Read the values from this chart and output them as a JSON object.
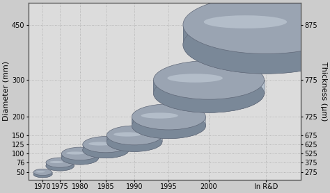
{
  "years": [
    "1970",
    "1975",
    "1980",
    "1985",
    "1990",
    "1995",
    "2000",
    "In R&D"
  ],
  "x_positions": [
    0.0,
    0.6,
    1.3,
    2.2,
    3.2,
    4.4,
    5.8,
    7.8
  ],
  "diameters": [
    50,
    76,
    100,
    125,
    150,
    200,
    300,
    450
  ],
  "thicknesses": [
    275,
    375,
    525,
    625,
    675,
    725,
    775,
    875
  ],
  "left_yticks": [
    50,
    76,
    100,
    125,
    150,
    200,
    300,
    450
  ],
  "right_yticks": [
    275,
    375,
    525,
    625,
    675,
    725,
    775,
    875
  ],
  "left_ylim": [
    30,
    510
  ],
  "xlim": [
    -0.5,
    9.0
  ],
  "bg_color": "#dcdcdc",
  "wafer_face_color": "#9aa4b2",
  "wafer_edge_color": "#606878",
  "wafer_side_dark": "#7a8898",
  "wafer_side_light": "#b8c4d0",
  "wafer_highlight": "#ccd6e0",
  "grid_color": "#aaaaaa",
  "fig_facecolor": "#cccccc",
  "tick_label_fontsize": 7,
  "axis_label_fontsize": 8
}
